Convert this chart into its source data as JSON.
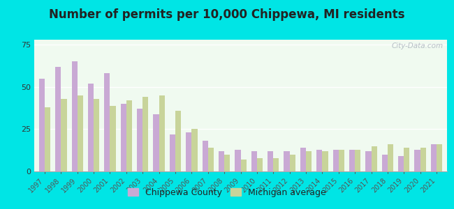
{
  "title": "Number of permits per 10,000 Chippewa, MI residents",
  "years": [
    1997,
    1998,
    1999,
    2000,
    2001,
    2002,
    2003,
    2004,
    2005,
    2006,
    2007,
    2008,
    2009,
    2010,
    2011,
    2012,
    2013,
    2014,
    2015,
    2016,
    2017,
    2018,
    2019,
    2020,
    2021
  ],
  "chippewa": [
    55,
    62,
    65,
    52,
    58,
    40,
    37,
    34,
    22,
    23,
    18,
    12,
    13,
    12,
    12,
    12,
    14,
    13,
    13,
    13,
    12,
    10,
    9,
    13,
    16
  ],
  "michigan": [
    38,
    43,
    45,
    43,
    39,
    42,
    44,
    45,
    36,
    25,
    14,
    10,
    7,
    8,
    8,
    10,
    12,
    12,
    13,
    13,
    15,
    16,
    14,
    14,
    16
  ],
  "chippewa_color": "#c9a9d4",
  "michigan_color": "#c8d49a",
  "bg_top_color": "#f0faf0",
  "bg_bottom_color": "#e0f5e0",
  "outer_background": "#00e5e5",
  "yticks": [
    0,
    25,
    50,
    75
  ],
  "ylim": [
    0,
    78
  ],
  "watermark": "City-Data.com",
  "legend_chippewa": "Chippewa County",
  "legend_michigan": "Michigan average",
  "title_fontsize": 12,
  "tick_fontsize": 7,
  "legend_fontsize": 9
}
